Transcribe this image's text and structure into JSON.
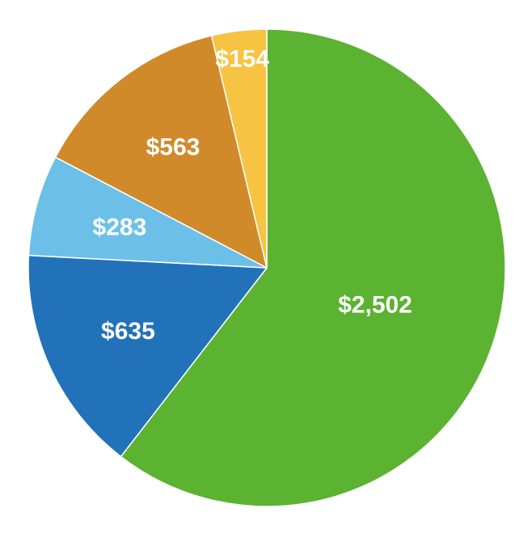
{
  "chart_data": {
    "type": "pie",
    "title": "",
    "legend": "none",
    "background": "#FFFFFF",
    "label_color": "#FFFFFF",
    "label_font_size": 30,
    "slice_border_color": "#FFFFFF",
    "slice_border_width": 1.5,
    "start_angle_deg": 0,
    "direction": "clockwise",
    "slices": [
      {
        "label": "$2,502",
        "value": 2502,
        "color": "#5CB231",
        "label_r": 0.48
      },
      {
        "label": "$635",
        "value": 635,
        "color": "#2272B9",
        "label_r": 0.64
      },
      {
        "label": "$283",
        "value": 283,
        "color": "#6CC0E8",
        "label_r": 0.64
      },
      {
        "label": "$563",
        "value": 563,
        "color": "#D08A2A",
        "label_r": 0.64
      },
      {
        "label": "$154",
        "value": 154,
        "color": "#F7C342",
        "label_r": 0.88
      }
    ]
  }
}
